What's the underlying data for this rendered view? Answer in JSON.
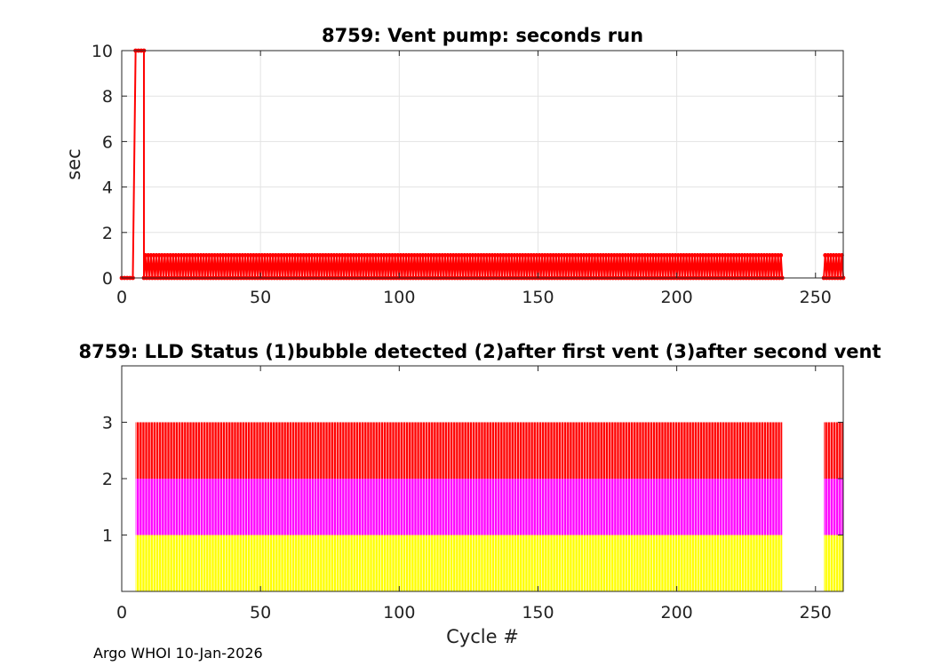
{
  "footer_text": "Argo WHOI 10-Jan-2026",
  "chart_data": [
    {
      "type": "line",
      "title": "8759: Vent pump: seconds run",
      "xlabel": "",
      "ylabel": "sec",
      "xlim": [
        0,
        260
      ],
      "ylim": [
        0,
        10
      ],
      "xticks": [
        "0",
        "50",
        "100",
        "150",
        "200",
        "250"
      ],
      "yticks": [
        "0",
        "2",
        "4",
        "6",
        "8",
        "10"
      ],
      "grid": true,
      "color": "#ff0000",
      "series": [
        {
          "segments": [
            {
              "x": [
                0,
                1,
                2,
                3,
                4
              ],
              "y": [
                0,
                0,
                0,
                0,
                0
              ]
            },
            {
              "x": [
                5,
                6,
                7,
                8
              ],
              "y": [
                10,
                10,
                10,
                10
              ]
            },
            {
              "x_start": 8,
              "x_end": 238,
              "y_alternating": [
                0,
                1
              ]
            },
            {
              "x_start": 253,
              "x_end": 260,
              "y_alternating": [
                0,
                1
              ]
            }
          ]
        }
      ]
    },
    {
      "type": "bar",
      "title": "8759: LLD Status   (1)bubble detected   (2)after first vent  (3)after second vent",
      "xlabel": "Cycle #",
      "ylabel": "",
      "xlim": [
        0,
        260
      ],
      "ylim": [
        0,
        4
      ],
      "xticks": [
        "0",
        "50",
        "100",
        "150",
        "200",
        "250"
      ],
      "yticks": [
        "1",
        "2",
        "3"
      ],
      "grid": false,
      "cycle_ranges": [
        [
          5,
          238
        ],
        [
          253,
          260
        ]
      ],
      "levels": [
        {
          "level": 1,
          "color": "#ffff00"
        },
        {
          "level": 2,
          "color": "#ff00ff"
        },
        {
          "level": 3,
          "color": "#ff0000"
        }
      ],
      "bar_value": 3
    }
  ]
}
